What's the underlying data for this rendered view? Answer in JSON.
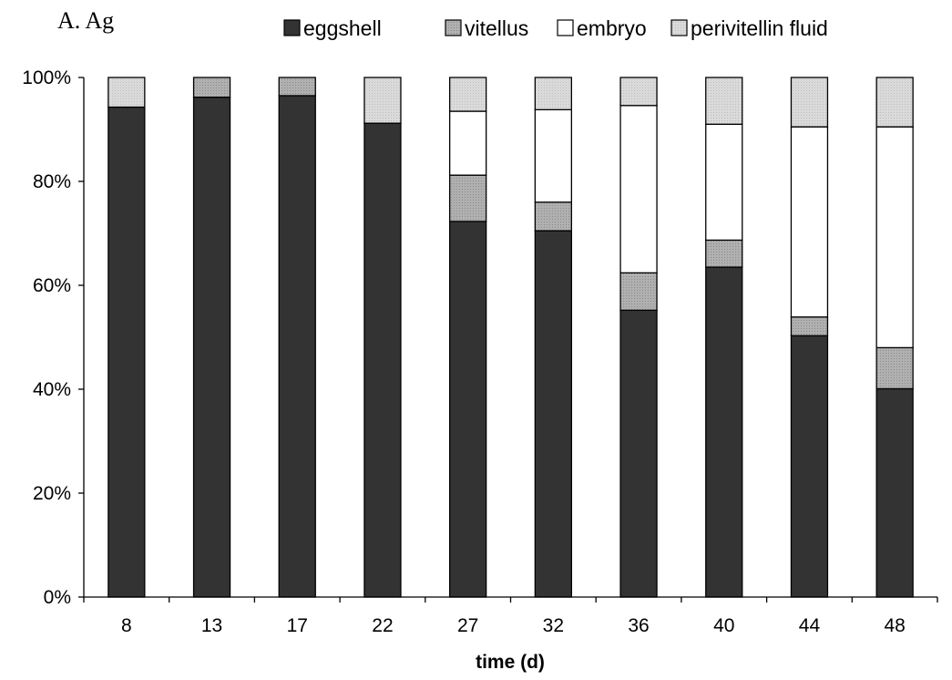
{
  "chart_data": {
    "type": "bar",
    "stacked": true,
    "normalized": true,
    "panel_label": "A. Ag",
    "xlabel": "time (d)",
    "ylabel": "",
    "categories": [
      "8",
      "13",
      "17",
      "22",
      "27",
      "32",
      "36",
      "40",
      "44",
      "48"
    ],
    "ylim": [
      0,
      100
    ],
    "y_ticks": [
      "0%",
      "20%",
      "40%",
      "60%",
      "80%",
      "100%"
    ],
    "legend_position": "top",
    "grid": false,
    "series": [
      {
        "name": "eggshell",
        "color": "#333333",
        "values": [
          94.3,
          96.2,
          96.5,
          91.2,
          72.3,
          70.5,
          55.2,
          63.5,
          50.3,
          40.1
        ]
      },
      {
        "name": "vitellus",
        "color": "#a8a8a8",
        "values": [
          0,
          3.8,
          3.5,
          0,
          8.9,
          5.5,
          7.2,
          5.2,
          3.6,
          7.9
        ]
      },
      {
        "name": "embryo",
        "color": "#ffffff",
        "values": [
          0,
          0,
          0,
          0,
          12.3,
          17.8,
          32.2,
          22.3,
          36.6,
          42.5
        ]
      },
      {
        "name": "perivitellin fluid",
        "color": "#d4d4d4",
        "values": [
          5.7,
          0,
          0,
          8.8,
          6.5,
          6.2,
          5.4,
          9.0,
          9.5,
          9.5
        ]
      }
    ]
  }
}
